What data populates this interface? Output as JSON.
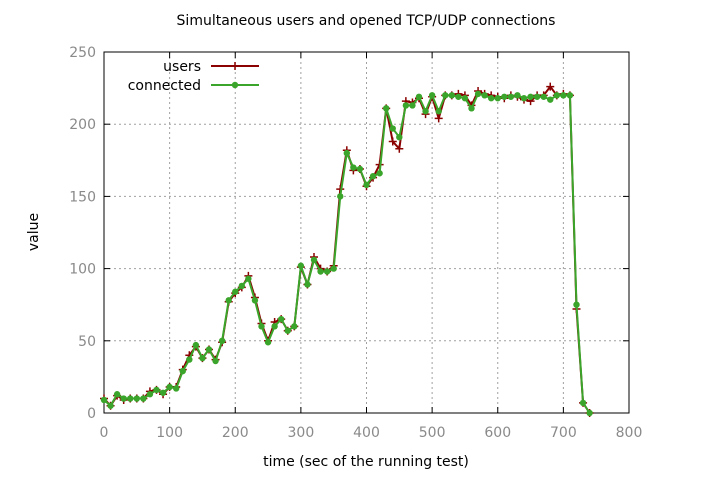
{
  "chart_data": {
    "type": "line",
    "title": "Simultaneous users and opened TCP/UDP connections",
    "xlabel": "time (sec of the running test)",
    "ylabel": "value",
    "xlim": [
      0,
      800
    ],
    "ylim": [
      0,
      250
    ],
    "xticks": [
      "0",
      "100",
      "200",
      "300",
      "400",
      "500",
      "600",
      "700",
      "800"
    ],
    "yticks": [
      "0",
      "50",
      "100",
      "150",
      "200",
      "250"
    ],
    "grid": true,
    "legend_position": "top-left",
    "series": [
      {
        "name": "users",
        "color": "#8b0000",
        "marker": "plus",
        "x": [
          0,
          10,
          20,
          30,
          40,
          50,
          60,
          70,
          80,
          90,
          100,
          110,
          120,
          130,
          140,
          150,
          160,
          170,
          180,
          190,
          200,
          210,
          220,
          230,
          240,
          250,
          260,
          270,
          280,
          290,
          300,
          310,
          320,
          330,
          340,
          350,
          360,
          370,
          380,
          390,
          400,
          410,
          420,
          430,
          440,
          450,
          460,
          470,
          480,
          490,
          500,
          510,
          520,
          530,
          540,
          550,
          560,
          570,
          580,
          590,
          600,
          610,
          620,
          630,
          640,
          650,
          660,
          670,
          680,
          690,
          700,
          710,
          720,
          730,
          740
        ],
        "y": [
          10,
          5,
          12,
          9,
          10,
          10,
          10,
          15,
          16,
          13,
          18,
          18,
          30,
          40,
          46,
          38,
          44,
          37,
          49,
          77,
          83,
          87,
          95,
          80,
          62,
          50,
          63,
          65,
          57,
          60,
          101,
          89,
          108,
          100,
          98,
          102,
          155,
          182,
          168,
          169,
          157,
          163,
          172,
          211,
          188,
          183,
          216,
          215,
          218,
          207,
          219,
          204,
          220,
          220,
          221,
          220,
          213,
          223,
          221,
          220,
          219,
          218,
          220,
          219,
          217,
          216,
          220,
          220,
          226,
          220,
          221,
          220,
          72,
          7,
          0
        ]
      },
      {
        "name": "connected",
        "color": "#3aa52a",
        "marker": "circle",
        "x": [
          0,
          10,
          20,
          30,
          40,
          50,
          60,
          70,
          80,
          90,
          100,
          110,
          120,
          130,
          140,
          150,
          160,
          170,
          180,
          190,
          200,
          210,
          220,
          230,
          240,
          250,
          260,
          270,
          280,
          290,
          300,
          310,
          320,
          330,
          340,
          350,
          360,
          370,
          380,
          390,
          400,
          410,
          420,
          430,
          440,
          450,
          460,
          470,
          480,
          490,
          500,
          510,
          520,
          530,
          540,
          550,
          560,
          570,
          580,
          590,
          600,
          610,
          620,
          630,
          640,
          650,
          660,
          670,
          680,
          690,
          700,
          710,
          720,
          730,
          740
        ],
        "y": [
          9,
          5,
          13,
          10,
          10,
          10,
          10,
          13,
          16,
          14,
          18,
          17,
          29,
          37,
          47,
          38,
          44,
          36,
          50,
          78,
          84,
          88,
          93,
          78,
          60,
          49,
          60,
          65,
          57,
          60,
          102,
          89,
          106,
          98,
          98,
          100,
          150,
          180,
          170,
          169,
          158,
          164,
          166,
          211,
          197,
          191,
          213,
          213,
          219,
          209,
          220,
          209,
          220,
          220,
          219,
          218,
          211,
          221,
          220,
          218,
          218,
          219,
          219,
          220,
          218,
          219,
          219,
          219,
          217,
          220,
          220,
          220,
          75,
          7,
          0
        ]
      }
    ]
  }
}
